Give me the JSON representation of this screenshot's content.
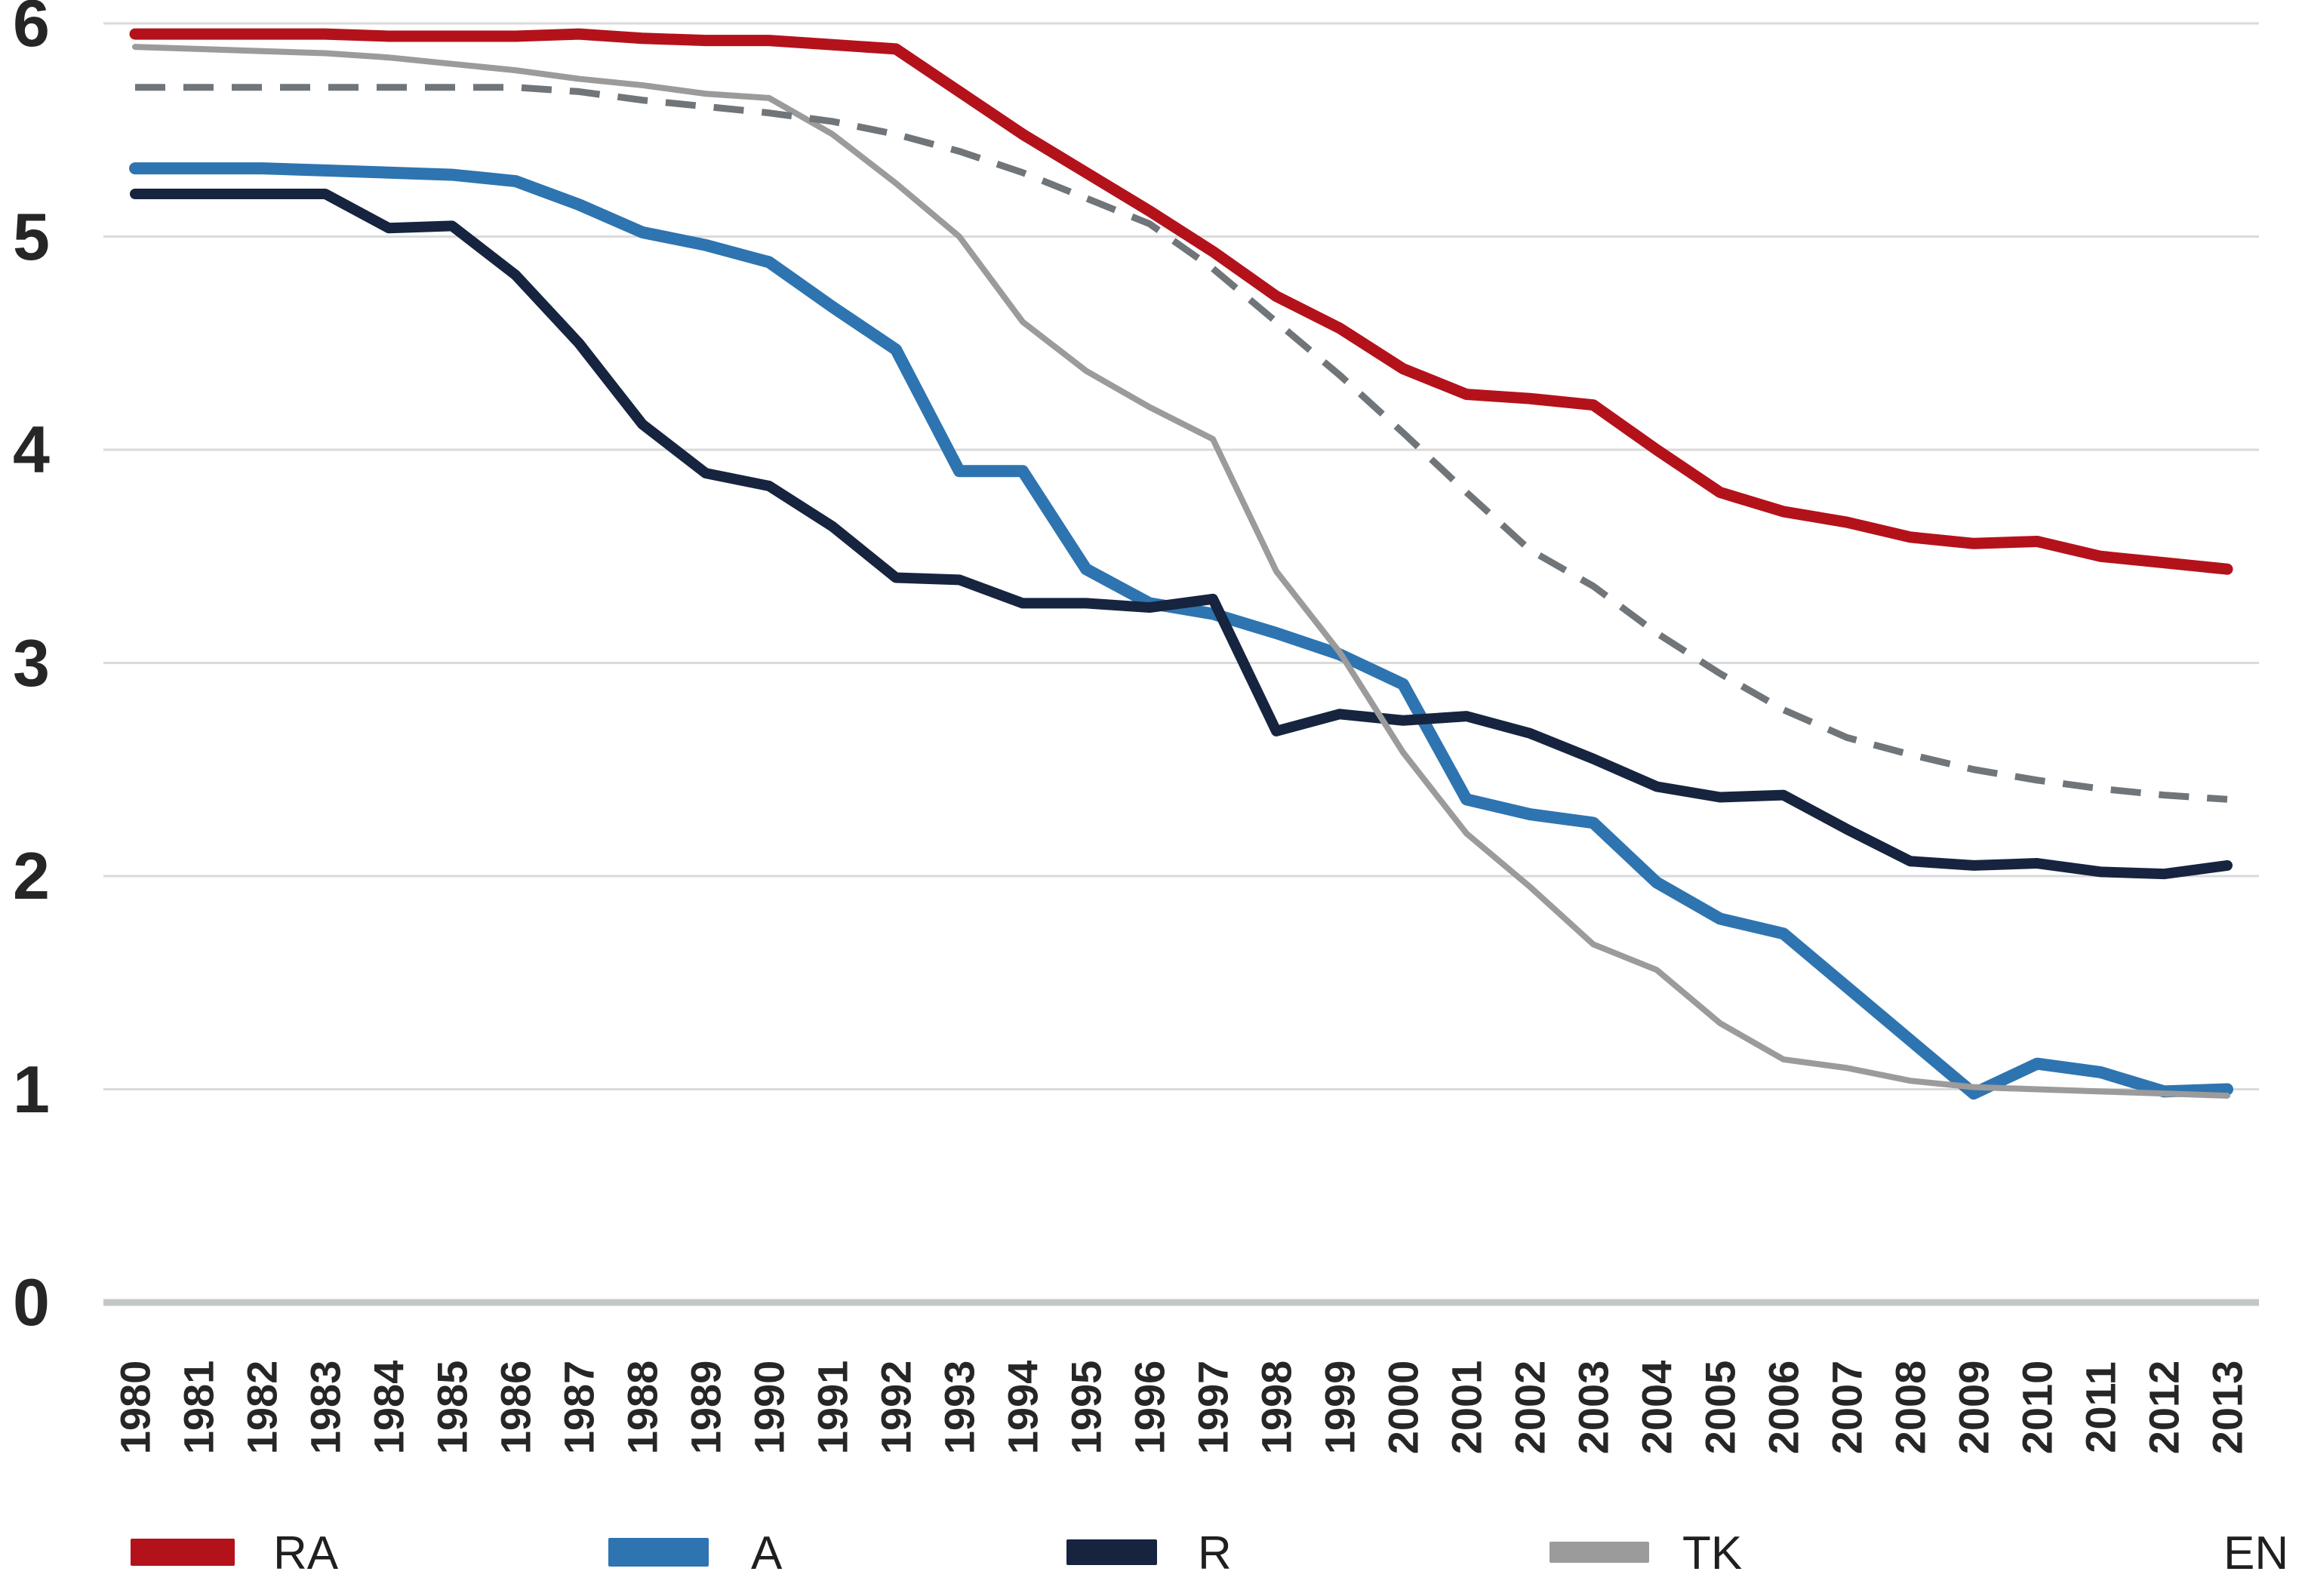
{
  "chart_data": {
    "type": "line",
    "title": "",
    "xlabel": "",
    "ylabel": "",
    "x": [
      1980,
      1981,
      1982,
      1983,
      1984,
      1985,
      1986,
      1987,
      1988,
      1989,
      1990,
      1991,
      1992,
      1993,
      1994,
      1995,
      1996,
      1997,
      1998,
      1999,
      2000,
      2001,
      2002,
      2003,
      2004,
      2005,
      2006,
      2007,
      2008,
      2009,
      2010,
      2011,
      2012,
      2013
    ],
    "yticks": [
      0,
      1,
      2,
      3,
      4,
      5,
      6
    ],
    "ylim": [
      0,
      6
    ],
    "grid": true,
    "legend_position": "bottom",
    "colors": {
      "gridline": "#d9dadb",
      "axis_line": "#c3c6c7",
      "tick_text": "#262626"
    },
    "series": [
      {
        "name": "RA",
        "color": "#b4121b",
        "dash": "solid",
        "values": [
          5.95,
          5.95,
          5.95,
          5.95,
          5.94,
          5.94,
          5.94,
          5.95,
          5.93,
          5.92,
          5.92,
          5.9,
          5.88,
          5.68,
          5.48,
          5.3,
          5.12,
          4.93,
          4.72,
          4.57,
          4.38,
          4.26,
          4.24,
          4.21,
          4.0,
          3.8,
          3.71,
          3.66,
          3.59,
          3.56,
          3.57,
          3.5,
          3.47,
          3.44
        ]
      },
      {
        "name": "A",
        "color": "#2e74b0",
        "dash": "solid",
        "values": [
          5.32,
          5.32,
          5.32,
          5.31,
          5.3,
          5.29,
          5.26,
          5.15,
          5.02,
          4.96,
          4.88,
          4.67,
          4.47,
          3.9,
          3.9,
          3.44,
          3.28,
          3.23,
          3.14,
          3.04,
          2.9,
          2.36,
          2.29,
          2.25,
          1.97,
          1.8,
          1.73,
          1.48,
          1.23,
          0.98,
          1.12,
          1.08,
          0.99,
          1.0
        ]
      },
      {
        "name": "R",
        "color": "#16243f",
        "dash": "solid",
        "values": [
          5.2,
          5.2,
          5.2,
          5.2,
          5.04,
          5.05,
          4.82,
          4.5,
          4.12,
          3.89,
          3.83,
          3.64,
          3.4,
          3.39,
          3.28,
          3.28,
          3.26,
          3.3,
          2.68,
          2.76,
          2.73,
          2.75,
          2.67,
          2.55,
          2.42,
          2.37,
          2.38,
          2.22,
          2.07,
          2.05,
          2.06,
          2.02,
          2.01,
          2.05
        ]
      },
      {
        "name": "TK",
        "color": "#9b9b9b",
        "dash": "solid",
        "values": [
          5.89,
          5.88,
          5.87,
          5.86,
          5.84,
          5.81,
          5.78,
          5.74,
          5.71,
          5.67,
          5.65,
          5.48,
          5.25,
          5.0,
          4.6,
          4.37,
          4.2,
          4.05,
          3.43,
          3.05,
          2.58,
          2.2,
          1.95,
          1.68,
          1.56,
          1.31,
          1.14,
          1.1,
          1.04,
          1.01,
          1.0,
          0.99,
          0.98,
          0.97
        ]
      },
      {
        "name": "EN",
        "color": "#70757a",
        "dash": "dashed",
        "values": [
          5.7,
          5.7,
          5.7,
          5.7,
          5.7,
          5.7,
          5.7,
          5.68,
          5.64,
          5.61,
          5.58,
          5.54,
          5.48,
          5.4,
          5.3,
          5.18,
          5.06,
          4.85,
          4.6,
          4.35,
          4.08,
          3.8,
          3.53,
          3.36,
          3.14,
          2.95,
          2.78,
          2.65,
          2.57,
          2.5,
          2.45,
          2.41,
          2.38,
          2.36
        ]
      }
    ]
  }
}
